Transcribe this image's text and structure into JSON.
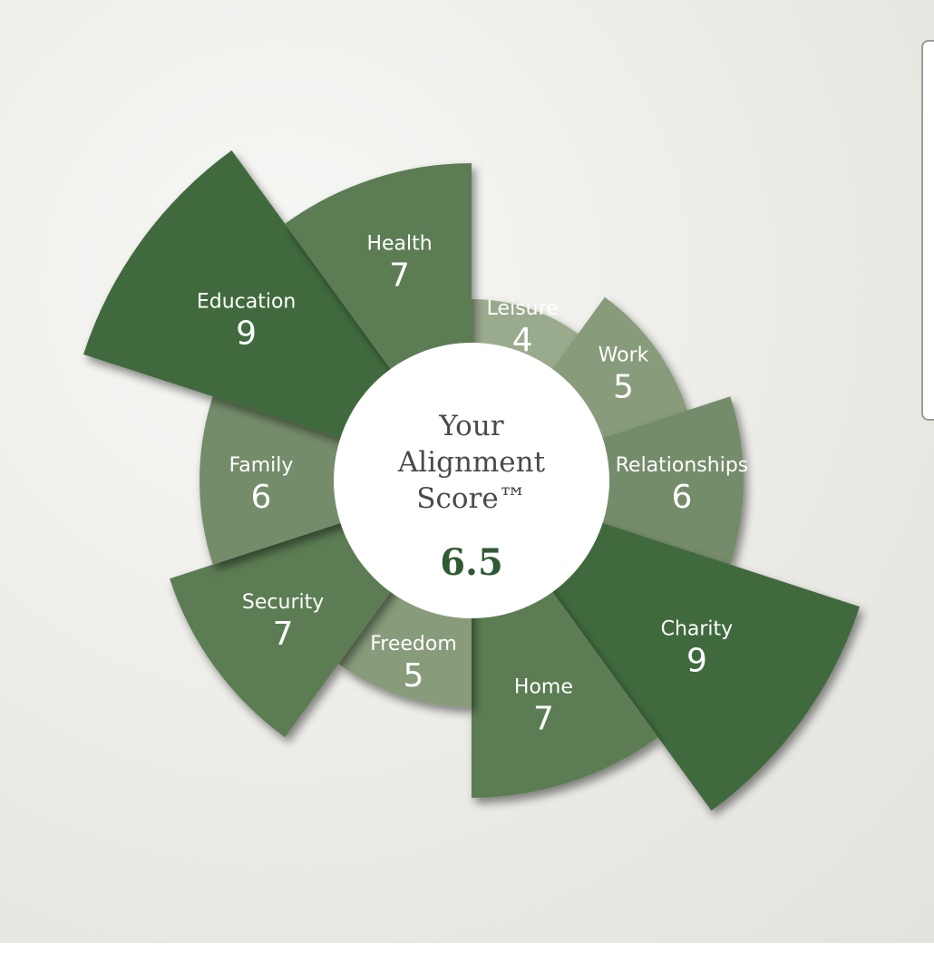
{
  "chart_data": {
    "type": "polar-bar",
    "center": {
      "title_lines": [
        "Your",
        "Alignment",
        "Score™"
      ],
      "score": "6.5"
    },
    "max_value": 10,
    "segments": [
      {
        "label": "Leisure",
        "value": 4,
        "color": "#9aab8d"
      },
      {
        "label": "Work",
        "value": 5,
        "color": "#889b7a"
      },
      {
        "label": "Relationships",
        "value": 6,
        "color": "#758c6a"
      },
      {
        "label": "Charity",
        "value": 9,
        "color": "#3f6a3c"
      },
      {
        "label": "Home",
        "value": 7,
        "color": "#5b7d52"
      },
      {
        "label": "Freedom",
        "value": 5,
        "color": "#889b7a"
      },
      {
        "label": "Security",
        "value": 7,
        "color": "#5b7d52"
      },
      {
        "label": "Family",
        "value": 6,
        "color": "#758c6a"
      },
      {
        "label": "Education",
        "value": 9,
        "color": "#3f6a3c"
      },
      {
        "label": "Health",
        "value": 7,
        "color": "#5b7d52"
      }
    ]
  }
}
